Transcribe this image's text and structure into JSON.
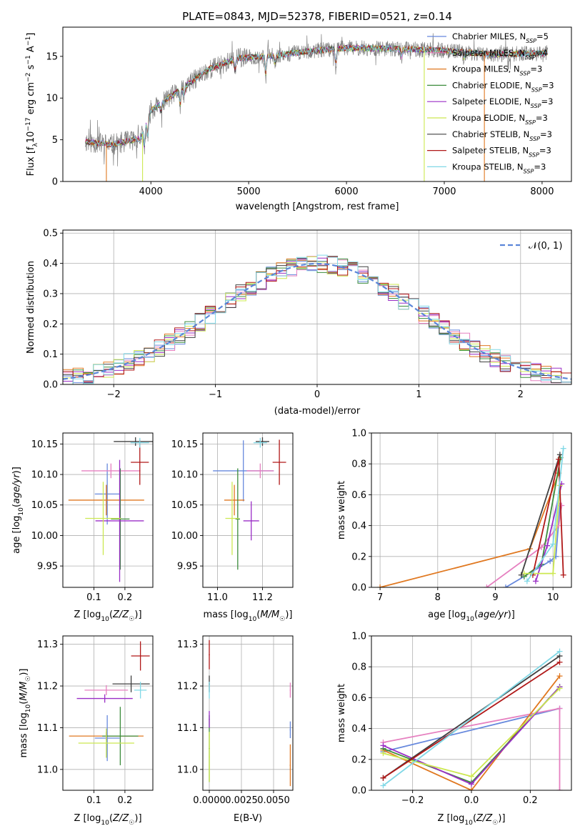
{
  "title": "PLATE=0843, MJD=52378, FIBERID=0521, z=0.14",
  "colors": {
    "Chabrier MILES": "#6688dd",
    "Salpeter MILES": "#e680c0",
    "Kroupa MILES": "#e07820",
    "Chabrier ELODIE": "#3c8c3c",
    "Salpeter ELODIE": "#9a2ec6",
    "Kroupa ELODIE": "#cce850",
    "Chabrier STELIB": "#404040",
    "Salpeter STELIB": "#b01818",
    "Kroupa STELIB": "#80d8e6",
    "data": "#808080",
    "normal": "#5b86d9"
  },
  "legend_spectrum": [
    "Chabrier MILES, N_SSP=5",
    "Salpeter MILES, N_SSP=4",
    "Kroupa MILES, N_SSP=3",
    "Chabrier ELODIE, N_SSP=3",
    "Salpeter ELODIE, N_SSP=3",
    "Kroupa ELODIE, N_SSP=3",
    "Chabrier STELIB, N_SSP=3",
    "Salpeter STELIB, N_SSP=3",
    "Kroupa STELIB, N_SSP=3"
  ],
  "legend_hist": "𝒩(0, 1)",
  "chart_data": [
    {
      "type": "line",
      "panel": "spectrum",
      "xlabel": "wavelength [Angstrom, rest frame]",
      "ylabel": "Flux [fλ 10⁻¹⁷ erg cm⁻² s⁻¹ A⁻¹]",
      "xlim": [
        3100,
        8300
      ],
      "ylim": [
        0,
        18.5
      ],
      "xticks": [
        "4000",
        "5000",
        "6000",
        "7000",
        "8000"
      ],
      "yticks": [
        "0",
        "5",
        "10",
        "15"
      ],
      "x_range_data": [
        3330,
        8060
      ],
      "continuum": {
        "x": [
          3330,
          3600,
          3900,
          4000,
          4300,
          4600,
          4900,
          5200,
          5600,
          6000,
          6500,
          7000,
          7500,
          8050
        ],
        "y": [
          4.8,
          4.4,
          5.2,
          8.5,
          11.0,
          13.5,
          14.8,
          15.0,
          15.6,
          16.0,
          15.9,
          15.7,
          15.2,
          15.4
        ]
      },
      "grid": false
    },
    {
      "type": "line",
      "panel": "residual-histogram",
      "xlabel": "(data-model)/error",
      "ylabel": "Normed distribution",
      "xlim": [
        -2.5,
        2.5
      ],
      "ylim": [
        0,
        0.51
      ],
      "xticks": [
        "−2",
        "−1",
        "0",
        "1",
        "2"
      ],
      "yticks": [
        "0.0",
        "0.1",
        "0.2",
        "0.3",
        "0.4",
        "0.5"
      ],
      "normal_curve": {
        "name": "𝒩(0, 1)",
        "mean": 0,
        "sigma": 1
      },
      "grid": true
    },
    {
      "type": "scatter",
      "panel": "age-vs-Z",
      "xlabel": "Z [log₁₀(Z/Z☉)]",
      "ylabel": "age  [log₁₀(age/yr)]",
      "xlim": [
        0.0,
        0.29
      ],
      "ylim": [
        9.915,
        10.168
      ],
      "xticks": [
        "0.1",
        "0.2"
      ],
      "yticks": [
        "9.95",
        "10.00",
        "10.05",
        "10.10",
        "10.15"
      ],
      "series": [
        {
          "model": "Chabrier MILES",
          "x": 0.143,
          "y": 10.068,
          "xerr": 0.04,
          "yerr": 0.05
        },
        {
          "model": "Salpeter MILES",
          "x": 0.155,
          "y": 10.106,
          "xerr": 0.095,
          "yerr": 0.012
        },
        {
          "model": "Kroupa MILES",
          "x": 0.14,
          "y": 10.058,
          "xerr": 0.122,
          "yerr": 0.025
        },
        {
          "model": "Chabrier ELODIE",
          "x": 0.185,
          "y": 10.027,
          "xerr": 0.03,
          "yerr": 0.083
        },
        {
          "model": "Salpeter ELODIE",
          "x": 0.183,
          "y": 10.024,
          "xerr": 0.078,
          "yerr": 0.1
        },
        {
          "model": "Kroupa ELODIE",
          "x": 0.13,
          "y": 10.028,
          "xerr": 0.058,
          "yerr": 0.06
        },
        {
          "model": "Chabrier STELIB",
          "x": 0.234,
          "y": 10.154,
          "xerr": 0.07,
          "yerr": 0.007
        },
        {
          "model": "Salpeter STELIB",
          "x": 0.248,
          "y": 10.12,
          "xerr": 0.029,
          "yerr": 0.037
        },
        {
          "model": "Kroupa STELIB",
          "x": 0.248,
          "y": 10.152,
          "xerr": 0.03,
          "yerr": 0.008
        }
      ],
      "grid": true
    },
    {
      "type": "scatter",
      "panel": "age-vs-mass",
      "xlabel": "mass [log₁₀(M/M☉)]",
      "ylabel": "",
      "xlim": [
        10.935,
        11.335
      ],
      "ylim": [
        9.915,
        10.168
      ],
      "xticks": [
        "11.0",
        "11.2"
      ],
      "yticks": [
        "9.95",
        "10.00",
        "10.05",
        "10.10",
        "10.15"
      ],
      "series": [
        {
          "model": "Chabrier MILES",
          "x": 11.115,
          "y": 10.106,
          "xerr": 0.135,
          "yerr": 0.05
        },
        {
          "model": "Salpeter MILES",
          "x": 11.19,
          "y": 10.106,
          "xerr": 0.06,
          "yerr": 0.012
        },
        {
          "model": "Kroupa MILES",
          "x": 11.075,
          "y": 10.058,
          "xerr": 0.045,
          "yerr": 0.025
        },
        {
          "model": "Chabrier ELODIE",
          "x": 11.09,
          "y": 10.027,
          "xerr": 0.01,
          "yerr": 0.083
        },
        {
          "model": "Salpeter ELODIE",
          "x": 11.15,
          "y": 10.024,
          "xerr": 0.035,
          "yerr": 0.032
        },
        {
          "model": "Kroupa ELODIE",
          "x": 11.065,
          "y": 10.028,
          "xerr": 0.03,
          "yerr": 0.06
        },
        {
          "model": "Chabrier STELIB",
          "x": 11.2,
          "y": 10.154,
          "xerr": 0.03,
          "yerr": 0.007
        },
        {
          "model": "Salpeter STELIB",
          "x": 11.275,
          "y": 10.12,
          "xerr": 0.03,
          "yerr": 0.037
        },
        {
          "model": "Kroupa STELIB",
          "x": 11.19,
          "y": 10.152,
          "xerr": 0.03,
          "yerr": 0.008
        }
      ],
      "grid": true
    },
    {
      "type": "line",
      "panel": "mass-weight-vs-age",
      "xlabel": "age  [log₁₀(age/yr)]",
      "ylabel": "mass weight",
      "xlim": [
        6.85,
        10.32
      ],
      "ylim": [
        0,
        1.0
      ],
      "xticks": [
        "7",
        "8",
        "9",
        "10"
      ],
      "yticks": [
        "0.0",
        "0.2",
        "0.4",
        "0.6",
        "0.8",
        "1.0"
      ],
      "series": [
        {
          "model": "Chabrier MILES",
          "points": [
            [
              9.18,
              0.0
            ],
            [
              9.95,
              0.17
            ],
            [
              10.05,
              0.2
            ],
            [
              10.12,
              0.53
            ]
          ]
        },
        {
          "model": "Salpeter MILES",
          "points": [
            [
              8.85,
              0.0
            ],
            [
              9.8,
              0.26
            ],
            [
              10.1,
              0.4
            ],
            [
              10.15,
              0.53
            ]
          ]
        },
        {
          "model": "Kroupa MILES",
          "points": [
            [
              7.0,
              0.0
            ],
            [
              9.6,
              0.25
            ],
            [
              10.1,
              0.74
            ]
          ]
        },
        {
          "model": "Chabrier ELODIE",
          "points": [
            [
              9.5,
              0.07
            ],
            [
              9.8,
              0.15
            ],
            [
              10.13,
              0.84
            ]
          ]
        },
        {
          "model": "Salpeter ELODIE",
          "points": [
            [
              9.7,
              0.04
            ],
            [
              9.9,
              0.27
            ],
            [
              10.15,
              0.67
            ]
          ]
        },
        {
          "model": "Kroupa ELODIE",
          "points": [
            [
              9.5,
              0.09
            ],
            [
              10.0,
              0.09
            ],
            [
              10.12,
              0.66
            ]
          ]
        },
        {
          "model": "Chabrier STELIB",
          "points": [
            [
              9.45,
              0.08
            ],
            [
              10.12,
              0.86
            ]
          ]
        },
        {
          "model": "Salpeter STELIB",
          "points": [
            [
              9.65,
              0.08
            ],
            [
              10.1,
              0.83
            ],
            [
              10.18,
              0.08
            ]
          ]
        },
        {
          "model": "Kroupa STELIB",
          "points": [
            [
              9.55,
              0.04
            ],
            [
              10.0,
              0.28
            ],
            [
              10.18,
              0.9
            ]
          ]
        }
      ],
      "grid": true
    },
    {
      "type": "scatter",
      "panel": "mass-vs-Z",
      "xlabel": "Z [log₁₀(Z/Z☉)]",
      "ylabel": "mass [log₁₀(M/M☉)]",
      "xlim": [
        0.0,
        0.29
      ],
      "ylim": [
        10.95,
        11.32
      ],
      "xticks": [
        "0.1",
        "0.2"
      ],
      "yticks": [
        "11.0",
        "11.1",
        "11.2",
        "11.3"
      ],
      "series": [
        {
          "model": "Chabrier MILES",
          "x": 0.143,
          "y": 11.075,
          "xerr": 0.04,
          "yerr": 0.055
        },
        {
          "model": "Salpeter MILES",
          "x": 0.14,
          "y": 11.19,
          "xerr": 0.07,
          "yerr": 0.012
        },
        {
          "model": "Kroupa MILES",
          "x": 0.14,
          "y": 11.08,
          "xerr": 0.12,
          "yerr": 0.01
        },
        {
          "model": "Chabrier ELODIE",
          "x": 0.185,
          "y": 11.08,
          "xerr": 0.058,
          "yerr": 0.07
        },
        {
          "model": "Salpeter ELODIE",
          "x": 0.135,
          "y": 11.17,
          "xerr": 0.09,
          "yerr": 0.01
        },
        {
          "model": "Kroupa ELODIE",
          "x": 0.14,
          "y": 11.063,
          "xerr": 0.09,
          "yerr": 0.035
        },
        {
          "model": "Chabrier STELIB",
          "x": 0.22,
          "y": 11.205,
          "xerr": 0.06,
          "yerr": 0.02
        },
        {
          "model": "Salpeter STELIB",
          "x": 0.25,
          "y": 11.272,
          "xerr": 0.03,
          "yerr": 0.035
        },
        {
          "model": "Kroupa STELIB",
          "x": 0.25,
          "y": 11.19,
          "xerr": 0.02,
          "yerr": 0.02
        }
      ],
      "grid": true
    },
    {
      "type": "scatter",
      "panel": "mass-vs-EBV",
      "xlabel": "E(B-V)",
      "ylabel": "",
      "xlim": [
        -0.0005,
        0.0065
      ],
      "ylim": [
        10.95,
        11.32
      ],
      "xticks": [
        "0.0000",
        "0.0025",
        "0.0050"
      ],
      "yticks": [
        "11.0",
        "11.1",
        "11.2",
        "11.3"
      ],
      "series": [
        {
          "model": "Chabrier MILES",
          "x": 0.0063,
          "y": 11.095,
          "xerr": 0,
          "yerr": 0.02
        },
        {
          "model": "Salpeter MILES",
          "x": 0.0063,
          "y": 11.19,
          "xerr": 0,
          "yerr": 0.018
        },
        {
          "model": "Kroupa MILES",
          "x": 0.0063,
          "y": 11.01,
          "xerr": 0,
          "yerr": 0.05
        },
        {
          "model": "Chabrier ELODIE",
          "x": 0.0,
          "y": 11.05,
          "xerr": 0,
          "yerr": 0.08
        },
        {
          "model": "Salpeter ELODIE",
          "x": 0.0,
          "y": 11.12,
          "xerr": 0,
          "yerr": 0.02
        },
        {
          "model": "Kroupa ELODIE",
          "x": 0.0,
          "y": 11.03,
          "xerr": 0,
          "yerr": 0.06
        },
        {
          "model": "Chabrier STELIB",
          "x": 0.0,
          "y": 11.205,
          "xerr": 0,
          "yerr": 0.02
        },
        {
          "model": "Salpeter STELIB",
          "x": 0.0,
          "y": 11.275,
          "xerr": 0,
          "yerr": 0.035
        },
        {
          "model": "Kroupa STELIB",
          "x": 0.0,
          "y": 11.19,
          "xerr": 0,
          "yerr": 0.02
        }
      ],
      "grid": true
    },
    {
      "type": "line",
      "panel": "mass-weight-vs-Z",
      "xlabel": "Z [log₁₀(Z/Z☉)]",
      "ylabel": "mass weight",
      "xlim": [
        -0.34,
        0.34
      ],
      "ylim": [
        0,
        1.0
      ],
      "xticks": [
        "−0.2",
        "0.0",
        "0.2"
      ],
      "yticks": [
        "0.0",
        "0.2",
        "0.4",
        "0.6",
        "0.8",
        "1.0"
      ],
      "series": [
        {
          "model": "Chabrier MILES",
          "points": [
            [
              -0.3,
              0.25
            ],
            [
              0.3,
              0.53
            ]
          ]
        },
        {
          "model": "Salpeter MILES",
          "points": [
            [
              -0.3,
              0.31
            ],
            [
              0.3,
              0.53
            ],
            [
              0.3,
              0.0
            ]
          ]
        },
        {
          "model": "Kroupa MILES",
          "points": [
            [
              -0.3,
              0.26
            ],
            [
              0.0,
              0.0
            ],
            [
              0.3,
              0.74
            ]
          ]
        },
        {
          "model": "Chabrier ELODIE",
          "points": [
            [
              -0.3,
              0.27
            ],
            [
              0.0,
              0.05
            ],
            [
              0.3,
              0.67
            ]
          ]
        },
        {
          "model": "Salpeter ELODIE",
          "points": [
            [
              -0.3,
              0.29
            ],
            [
              0.0,
              0.04
            ],
            [
              0.3,
              0.67
            ]
          ]
        },
        {
          "model": "Kroupa ELODIE",
          "points": [
            [
              -0.3,
              0.24
            ],
            [
              0.0,
              0.09
            ],
            [
              0.3,
              0.66
            ]
          ]
        },
        {
          "model": "Chabrier STELIB",
          "points": [
            [
              -0.3,
              0.08
            ],
            [
              0.3,
              0.87
            ]
          ]
        },
        {
          "model": "Salpeter STELIB",
          "points": [
            [
              -0.3,
              0.08
            ],
            [
              0.3,
              0.83
            ]
          ]
        },
        {
          "model": "Kroupa STELIB",
          "points": [
            [
              -0.3,
              0.03
            ],
            [
              0.3,
              0.9
            ]
          ]
        }
      ],
      "grid": true
    }
  ]
}
